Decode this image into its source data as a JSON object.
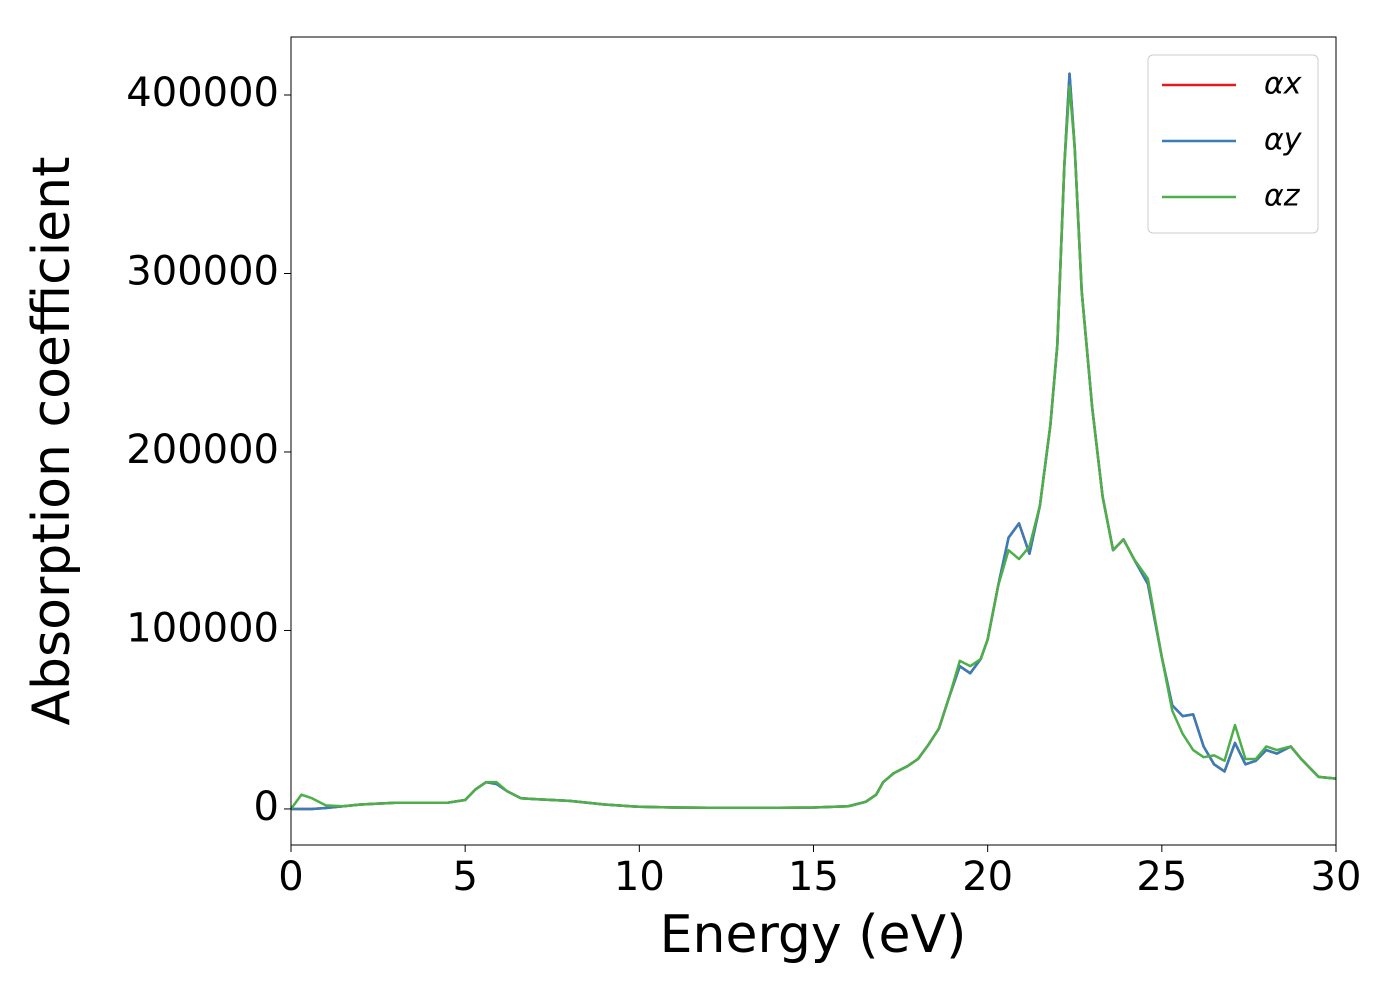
{
  "chart_data": {
    "type": "line",
    "x_label": "Energy (eV)",
    "y_label": "Absorption coefficient",
    "x": [
      0,
      0.3,
      0.6,
      1,
      1.5,
      2,
      2.5,
      3,
      3.5,
      4,
      4.5,
      5,
      5.3,
      5.6,
      5.9,
      6.2,
      6.6,
      7,
      7.5,
      8,
      9,
      10,
      11,
      12,
      13,
      14,
      15,
      16,
      16.5,
      16.8,
      17,
      17.3,
      17.7,
      18,
      18.3,
      18.6,
      18.9,
      19.2,
      19.5,
      19.8,
      20,
      20.3,
      20.6,
      20.9,
      21.2,
      21.5,
      21.8,
      22,
      22.2,
      22.35,
      22.5,
      22.7,
      23,
      23.3,
      23.6,
      23.9,
      24.2,
      24.6,
      25,
      25.3,
      25.6,
      25.9,
      26.2,
      26.5,
      26.8,
      27.1,
      27.4,
      27.7,
      28,
      28.3,
      28.7,
      29,
      29.5,
      30
    ],
    "series": [
      {
        "name": "αx",
        "color": "#e41a1c",
        "values": [
          0,
          0,
          0,
          500,
          1500,
          2500,
          3000,
          3500,
          3500,
          3500,
          3500,
          5000,
          11000,
          15000,
          14000,
          10000,
          6000,
          5500,
          5000,
          4500,
          2500,
          1200,
          800,
          700,
          700,
          700,
          800,
          1500,
          4000,
          8000,
          15000,
          20000,
          24000,
          28000,
          36000,
          45000,
          63000,
          80000,
          76000,
          84000,
          95000,
          125000,
          152000,
          160000,
          143000,
          170000,
          215000,
          260000,
          360000,
          412000,
          370000,
          290000,
          225000,
          175000,
          145000,
          151000,
          140000,
          126000,
          85000,
          58000,
          52000,
          53000,
          35000,
          25000,
          21000,
          37000,
          25000,
          27000,
          33000,
          31000,
          35000,
          28000,
          18000,
          17000
        ]
      },
      {
        "name": "αy",
        "color": "#377eb8",
        "values": [
          0,
          0,
          0,
          500,
          1500,
          2500,
          3000,
          3500,
          3500,
          3500,
          3500,
          5000,
          11000,
          15000,
          14000,
          10000,
          6000,
          5500,
          5000,
          4500,
          2500,
          1200,
          800,
          700,
          700,
          700,
          800,
          1500,
          4000,
          8000,
          15000,
          20000,
          24000,
          28000,
          36000,
          45000,
          63000,
          80000,
          76000,
          84000,
          95000,
          125000,
          152000,
          160000,
          143000,
          170000,
          215000,
          260000,
          360000,
          412000,
          370000,
          290000,
          225000,
          175000,
          145000,
          151000,
          140000,
          126000,
          85000,
          58000,
          52000,
          53000,
          35000,
          25000,
          21000,
          37000,
          25000,
          27000,
          33000,
          31000,
          35000,
          28000,
          18000,
          17000
        ]
      },
      {
        "name": "αz",
        "color": "#4daf4a",
        "values": [
          0,
          8000,
          6000,
          2000,
          1500,
          2500,
          3000,
          3500,
          3500,
          3500,
          3500,
          5000,
          11000,
          15000,
          15000,
          10000,
          6000,
          5500,
          5000,
          4500,
          2500,
          1200,
          800,
          700,
          700,
          700,
          800,
          1500,
          4000,
          8000,
          15000,
          20000,
          24000,
          28000,
          36000,
          45000,
          63000,
          83000,
          80000,
          84000,
          95000,
          125000,
          145000,
          140000,
          147000,
          170000,
          215000,
          260000,
          360000,
          405000,
          370000,
          290000,
          225000,
          175000,
          145000,
          151000,
          140000,
          129000,
          85000,
          55000,
          42000,
          33000,
          29000,
          30000,
          27000,
          47000,
          28000,
          28000,
          35000,
          33000,
          35000,
          28000,
          18000,
          17000
        ]
      }
    ],
    "xlim": [
      0,
      30
    ],
    "xticks": [
      0,
      5,
      10,
      15,
      20,
      25,
      30
    ],
    "ylim": [
      -20200,
      432500
    ],
    "yticks": [
      0,
      100000,
      200000,
      300000,
      400000
    ],
    "legend": "upper right"
  }
}
